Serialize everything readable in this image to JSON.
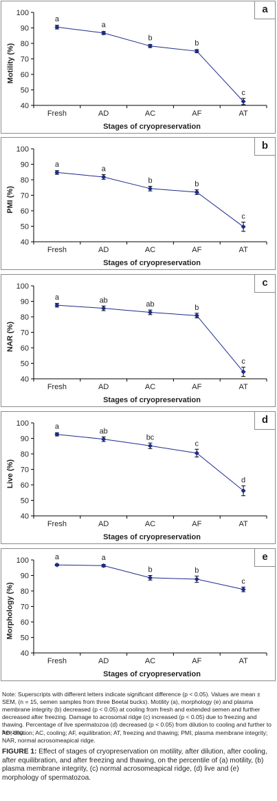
{
  "chart_data": [
    {
      "type": "line",
      "panel_letter": "a",
      "ylabel": "Motility (%)",
      "xlabel": "Stages of cryopreservation",
      "categories": [
        "Fresh",
        "AD",
        "AC",
        "AF",
        "AT"
      ],
      "values": [
        90.5,
        86.7,
        78.3,
        75.0,
        42.5
      ],
      "errors": [
        1.2,
        1.0,
        1.0,
        1.0,
        2.0
      ],
      "letters": [
        "a",
        "a",
        "b",
        "b",
        "c"
      ],
      "ylim": [
        40,
        100
      ],
      "yticks": [
        "40",
        "50",
        "60",
        "70",
        "80",
        "90",
        "100"
      ],
      "color": "#1a2a8c"
    },
    {
      "type": "line",
      "panel_letter": "b",
      "ylabel": "PMI (%)",
      "xlabel": "Stages of cryopreservation",
      "categories": [
        "Fresh",
        "AD",
        "AC",
        "AF",
        "AT"
      ],
      "values": [
        84.7,
        81.8,
        74.3,
        72.0,
        49.7
      ],
      "errors": [
        1.2,
        1.5,
        1.5,
        1.5,
        3.0
      ],
      "letters": [
        "a",
        "a",
        "b",
        "b",
        "c"
      ],
      "ylim": [
        40,
        100
      ],
      "yticks": [
        "40",
        "50",
        "60",
        "70",
        "80",
        "90",
        "100"
      ],
      "color": "#1a2a8c"
    },
    {
      "type": "line",
      "panel_letter": "c",
      "ylabel": "NAR (%)",
      "xlabel": "Stages of cryopreservation",
      "categories": [
        "Fresh",
        "AD",
        "AC",
        "AF",
        "AT"
      ],
      "values": [
        87.5,
        85.5,
        82.9,
        80.8,
        44.5
      ],
      "errors": [
        1.2,
        1.5,
        1.5,
        1.5,
        3.0
      ],
      "letters": [
        "a",
        "ab",
        "ab",
        "b",
        "c"
      ],
      "ylim": [
        40,
        100
      ],
      "yticks": [
        "40",
        "50",
        "60",
        "70",
        "80",
        "90",
        "100"
      ],
      "color": "#1a2a8c"
    },
    {
      "type": "line",
      "panel_letter": "d",
      "ylabel": "Live (%)",
      "xlabel": "Stages of cryopreservation",
      "categories": [
        "Fresh",
        "AD",
        "AC",
        "AF",
        "AT"
      ],
      "values": [
        92.6,
        89.5,
        85.2,
        80.5,
        56.2
      ],
      "errors": [
        1.0,
        1.5,
        1.8,
        2.5,
        3.2
      ],
      "letters": [
        "a",
        "ab",
        "bc",
        "c",
        "d"
      ],
      "ylim": [
        40,
        100
      ],
      "yticks": [
        "40",
        "50",
        "60",
        "70",
        "80",
        "90",
        "100"
      ],
      "color": "#1a2a8c"
    },
    {
      "type": "line",
      "panel_letter": "e",
      "ylabel": "Morphology (%)",
      "xlabel": "Stages of cryopreservation",
      "categories": [
        "Fresh",
        "AD",
        "AC",
        "AF",
        "AT"
      ],
      "values": [
        96.8,
        96.3,
        88.5,
        87.6,
        81.0
      ],
      "errors": [
        0.6,
        0.8,
        1.5,
        2.0,
        1.5
      ],
      "letters": [
        "a",
        "a",
        "b",
        "b",
        "c"
      ],
      "ylim": [
        40,
        100
      ],
      "yticks": [
        "40",
        "50",
        "60",
        "70",
        "80",
        "90",
        "100"
      ],
      "color": "#1a2a8c"
    }
  ],
  "note": {
    "p1": "Note: Superscripts with different letters indicate significant difference (p < 0.05). Values are mean ± SEM, (n = 15, semen samples from three Beetal bucks). Motility (a), morphology (e) and plasma membrane integrity (b) decreased (p < 0.05) at cooling from fresh and extended semen and further decreased after freezing. Damage to acrosomal ridge (c) increased (p < 0.05) due to freezing and thawing. Percentage of live spermatozoa (d) decreased (p < 0.05) from dilution to cooling and further to freezing.",
    "p2": "AD, dilution; AC, cooling; AF, equilibration; AT, freezing and thawing; PMI, plasma membrane integrity; NAR, normal acrosomeapical ridge."
  },
  "caption": {
    "label": "FIGURE 1:",
    "text": " Effect of stages of cryopreservation on motility, after dilution, after cooling, after equilibration, and after freezing and thawing, on the percentile of (a) motility, (b) plasma membrane integrity, (c) normal acrosomeapical ridge, (d) live and (e) morphology of spermatozoa."
  }
}
